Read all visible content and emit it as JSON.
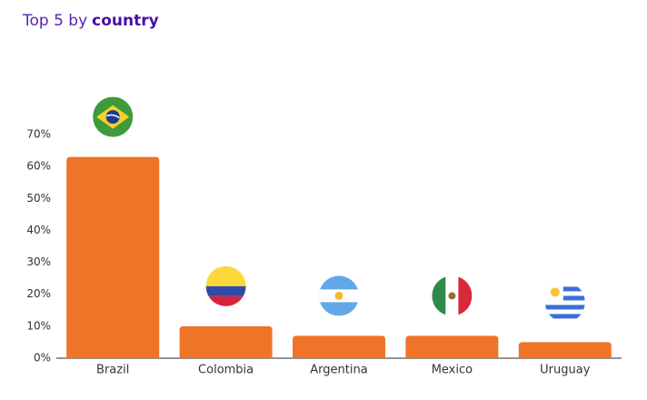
{
  "chart_data": {
    "type": "bar",
    "title": "Top 5 by",
    "title_emphasis": "country",
    "categories": [
      "Brazil",
      "Colombia",
      "Argentina",
      "Mexico",
      "Uruguay"
    ],
    "values": [
      63,
      10,
      7,
      7,
      5
    ],
    "color": "#f07427",
    "ylim": [
      0,
      70
    ],
    "yticks": [
      {
        "value": 0,
        "label": "0%"
      },
      {
        "value": 10,
        "label": "10%"
      },
      {
        "value": 20,
        "label": "20%"
      },
      {
        "value": 30,
        "label": "30%"
      },
      {
        "value": 40,
        "label": "40%"
      },
      {
        "value": 50,
        "label": "50%"
      },
      {
        "value": 60,
        "label": "60%"
      },
      {
        "value": 70,
        "label": "70%"
      }
    ],
    "grid": false
  }
}
